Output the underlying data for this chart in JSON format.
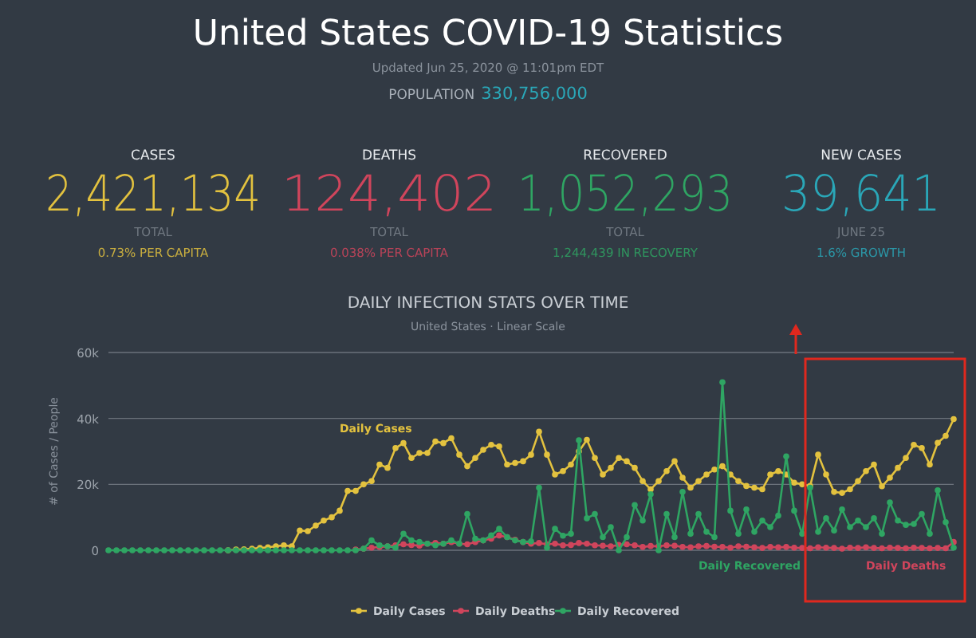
{
  "chart_data": {
    "type": "line",
    "title": "United States COVID-19 Statistics",
    "subtitle": "Updated Jun 25, 2020 @ 11:01pm EDT",
    "annotations": [
      "POPULATION",
      "330,756,000",
      "CASES",
      "2,421,134",
      "TOTAL",
      "0.73% PER CAPITA",
      "DEATHS",
      "124,402",
      "TOTAL",
      "0.038% PER CAPITA",
      "RECOVERED",
      "1,052,293",
      "TOTAL",
      "1,244,439 IN RECOVERY",
      "NEW CASES",
      "39,641",
      "JUNE 25",
      "1.6% GROWTH",
      "DAILY INFECTION STATS OVER TIME",
      "United States · Linear Scale"
    ],
    "ylabel": "# of Cases / People",
    "categories": [
      null,
      null,
      null,
      null,
      null,
      null,
      null,
      null,
      null,
      null,
      null,
      null,
      null,
      null,
      null,
      null,
      null,
      null,
      null,
      null,
      null,
      null,
      null,
      null,
      null,
      null,
      null,
      null,
      null,
      null,
      null,
      null,
      null,
      null,
      null,
      null,
      null,
      null,
      null,
      null,
      null,
      null,
      null,
      null,
      null,
      null,
      null,
      null,
      null,
      null,
      null,
      null,
      null,
      null,
      null,
      null,
      null,
      null,
      null,
      null,
      null,
      null,
      null,
      null,
      null,
      null,
      null,
      null,
      null,
      null,
      null,
      null,
      null,
      null,
      null,
      null,
      null,
      null,
      null,
      null,
      null,
      null,
      null,
      null,
      null,
      null,
      null,
      null,
      null,
      null,
      null,
      null,
      null,
      null,
      null,
      null,
      null,
      null,
      null,
      null,
      null,
      null,
      null,
      null,
      null,
      null,
      null
    ],
    "series": [
      {
        "name": "Daily Cases",
        "color": "#e3c23f",
        "values": [
          null,
          null,
          null,
          null,
          null,
          null,
          null,
          null,
          null,
          null,
          null,
          null,
          null,
          null,
          null,
          0,
          200,
          300,
          500,
          700,
          900,
          1200,
          1500,
          1200,
          6000,
          5800,
          7500,
          9000,
          10000,
          12000,
          18000,
          18000,
          20000,
          21000,
          26000,
          25000,
          31000,
          32500,
          28000,
          29500,
          29500,
          33000,
          32500,
          34000,
          29000,
          25500,
          28000,
          30500,
          32000,
          31500,
          26000,
          26500,
          27000,
          29000,
          36000,
          29000,
          23000,
          24000,
          26000,
          30000,
          33500,
          28000,
          23000,
          25000,
          28000,
          27000,
          25000,
          21000,
          18500,
          21000,
          24000,
          27000,
          22000,
          19000,
          21000,
          23000,
          24500,
          25500,
          23000,
          21000,
          19500,
          19000,
          18500,
          23000,
          24000,
          23000,
          20500,
          20000,
          19500,
          29000,
          23000,
          17700,
          17400,
          18500,
          21000,
          24000,
          26000,
          19400,
          22000,
          25000,
          28000,
          32000,
          31000,
          26000,
          32600,
          34700,
          39800
        ]
      },
      {
        "name": "Daily Deaths",
        "color": "#d0455c",
        "values": [
          null,
          null,
          null,
          null,
          null,
          null,
          null,
          null,
          null,
          null,
          null,
          null,
          null,
          null,
          null,
          null,
          null,
          null,
          null,
          null,
          null,
          null,
          null,
          null,
          null,
          null,
          null,
          null,
          null,
          null,
          null,
          200,
          500,
          800,
          1000,
          1200,
          1500,
          1800,
          1600,
          1400,
          2000,
          2200,
          2000,
          2500,
          2000,
          1800,
          2500,
          3000,
          3500,
          4500,
          4000,
          3200,
          2500,
          2000,
          2200,
          1800,
          2000,
          1500,
          1600,
          2200,
          2000,
          1500,
          1400,
          1200,
          1600,
          1800,
          1500,
          1000,
          1300,
          1200,
          1500,
          1400,
          1000,
          900,
          1200,
          1300,
          1100,
          1000,
          800,
          1200,
          1100,
          900,
          700,
          1000,
          900,
          1000,
          800,
          700,
          600,
          900,
          800,
          700,
          500,
          800,
          700,
          900,
          700,
          600,
          800,
          700,
          600,
          800,
          700,
          600,
          700,
          600,
          2500
        ]
      },
      {
        "name": "Daily Recovered",
        "color": "#2fa563",
        "values": [
          0,
          0,
          0,
          0,
          0,
          0,
          0,
          0,
          0,
          0,
          0,
          0,
          0,
          0,
          0,
          0,
          0,
          0,
          0,
          0,
          0,
          0,
          0,
          0,
          0,
          0,
          0,
          0,
          0,
          0,
          0,
          0,
          500,
          3000,
          1500,
          1200,
          800,
          5000,
          3000,
          2500,
          2000,
          1500,
          2000,
          3000,
          2000,
          11000,
          3500,
          3000,
          4500,
          6500,
          4000,
          3000,
          2500,
          2700,
          19000,
          800,
          6500,
          4400,
          5000,
          33400,
          9700,
          11000,
          4000,
          7000,
          0,
          4000,
          13700,
          9000,
          17000,
          0,
          11000,
          4000,
          17700,
          5000,
          11000,
          5600,
          4000,
          51000,
          12000,
          5000,
          12400,
          5600,
          9000,
          7000,
          10500,
          28500,
          12000,
          5000,
          19000,
          5600,
          9700,
          6000,
          12400,
          7000,
          9000,
          7000,
          9700,
          5000,
          14500,
          9000,
          7700,
          8000,
          11000,
          5000,
          18200,
          8500,
          800
        ]
      }
    ],
    "ylim": [
      0,
      60000
    ],
    "yticks": [
      0,
      {
        "value": 20000,
        "label": "20k"
      },
      {
        "value": 40000,
        "label": "40k"
      },
      {
        "value": 60000,
        "label": "60k"
      }
    ],
    "tick_labels": "y",
    "grid": "y",
    "legend": "bottom",
    "marker": "circle",
    "line_style": "solid"
  }
}
